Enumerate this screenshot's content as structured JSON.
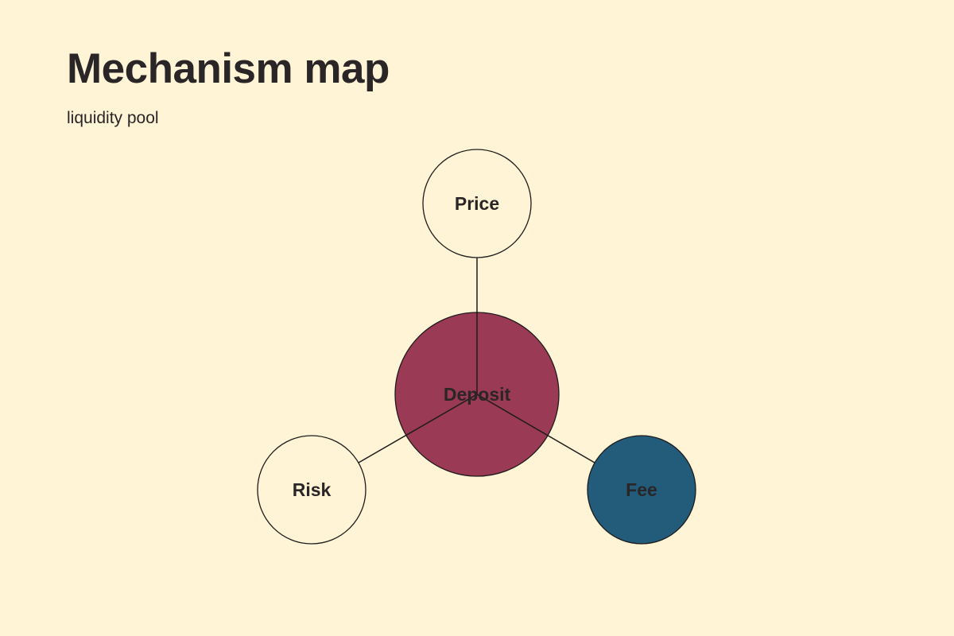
{
  "header": {
    "title": "Mechanism map",
    "subtitle": "liquidity pool"
  },
  "diagram": {
    "type": "hub-and-spoke",
    "colors": {
      "background": "#fff4d6",
      "hub": "#9a3a55",
      "fee": "#225c7a",
      "plain": "#fff4d6",
      "stroke": "#1f1b1c",
      "text": "#2a2526"
    },
    "nodes": {
      "hub": {
        "label": "Deposit",
        "fill": "#9a3a55"
      },
      "price": {
        "label": "Price",
        "fill": "#fff4d6"
      },
      "risk": {
        "label": "Risk",
        "fill": "#fff4d6"
      },
      "fee": {
        "label": "Fee",
        "fill": "#225c7a"
      }
    },
    "edges": [
      {
        "from": "Deposit",
        "to": "Price"
      },
      {
        "from": "Deposit",
        "to": "Risk"
      },
      {
        "from": "Deposit",
        "to": "Fee"
      }
    ]
  }
}
